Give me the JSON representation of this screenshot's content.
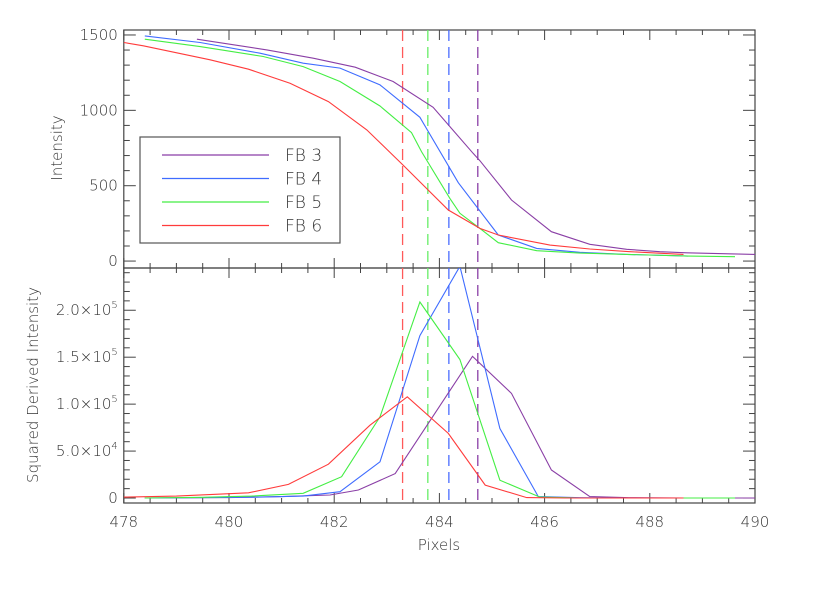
{
  "chart_data": [
    {
      "type": "line",
      "panel": "top",
      "title": "",
      "xlabel": "",
      "ylabel": "Intensity",
      "xlim": [
        478,
        490
      ],
      "ylim": [
        -46,
        1533
      ],
      "yticks": [
        0,
        500,
        1000,
        1500
      ],
      "ytick_labels": [
        "0",
        "500",
        "1000",
        "1500"
      ],
      "grid": false,
      "legend": {
        "placement": "center-left",
        "entries": [
          "FB 3",
          "FB 4",
          "FB 5",
          "FB 6"
        ]
      },
      "series": [
        {
          "name": "FB 3",
          "color": "#8a3fa6",
          "x": [
            479.39,
            480.72,
            481.6,
            482.4,
            483.12,
            483.88,
            484.64,
            484.77,
            485.37,
            486.13,
            486.86,
            487.56,
            488.19,
            488.7,
            490.0
          ],
          "y": [
            1472,
            1401,
            1346,
            1286,
            1191,
            1020,
            715,
            666,
            405,
            195,
            111,
            78,
            62,
            55,
            44
          ]
        },
        {
          "name": "FB 4",
          "color": "#3f6cff",
          "x": [
            478.4,
            479.45,
            480.59,
            481.41,
            482.11,
            482.87,
            483.63,
            484.36,
            485.12,
            485.85,
            486.67,
            487.56,
            488.73
          ],
          "y": [
            1494,
            1450,
            1379,
            1313,
            1280,
            1169,
            954,
            520,
            173,
            84,
            58,
            44,
            33
          ]
        },
        {
          "name": "FB 5",
          "color": "#44ee44",
          "x": [
            478.4,
            479.45,
            480.65,
            481.41,
            482.11,
            482.87,
            483.47,
            483.66,
            484.2,
            484.39,
            484.77,
            485.12,
            485.85,
            486.67,
            488.73,
            489.62
          ],
          "y": [
            1472,
            1423,
            1357,
            1290,
            1191,
            1029,
            852,
            726,
            416,
            317,
            217,
            122,
            69,
            53,
            33,
            29
          ]
        },
        {
          "name": "FB 6",
          "color": "#ff3b3b",
          "x": [
            478.0,
            478.37,
            479.64,
            480.37,
            481.16,
            481.89,
            482.62,
            483.31,
            484.17,
            484.77,
            485.12,
            486.1,
            486.86,
            487.62,
            488.64
          ],
          "y": [
            1450,
            1428,
            1335,
            1273,
            1180,
            1058,
            870,
            637,
            339,
            217,
            173,
            106,
            80,
            62,
            44
          ]
        }
      ],
      "vlines": [
        {
          "x": 483.3,
          "color": "#ff5a5a"
        },
        {
          "x": 483.78,
          "color": "#66ee66"
        },
        {
          "x": 484.18,
          "color": "#4a6cff"
        },
        {
          "x": 484.73,
          "color": "#8a3fa6"
        }
      ]
    },
    {
      "type": "line",
      "panel": "bottom",
      "title": "",
      "xlabel": "Pixels",
      "ylabel": "Squared Derived Intensity",
      "xlim": [
        478,
        490
      ],
      "ylim": [
        -5300,
        245000
      ],
      "xticks": [
        478,
        480,
        482,
        484,
        486,
        488,
        490
      ],
      "xtick_labels": [
        "478",
        "480",
        "482",
        "484",
        "486",
        "488",
        "490"
      ],
      "yticks": [
        0,
        50000,
        100000,
        150000,
        200000
      ],
      "ytick_labels": [
        {
          "mant": "0",
          "exp": ""
        },
        {
          "mant": "5.0×10",
          "exp": "4"
        },
        {
          "mant": "1.0×10",
          "exp": "5"
        },
        {
          "mant": "1.5×10",
          "exp": "5"
        },
        {
          "mant": "2.0×10",
          "exp": "5"
        }
      ],
      "grid": false,
      "series": [
        {
          "name": "FB 3",
          "color": "#8a3fa6",
          "x": [
            478.4,
            480.0,
            481.0,
            481.92,
            482.46,
            483.16,
            484.63,
            485.37,
            486.13,
            486.86,
            487.6,
            488.7,
            490.0
          ],
          "y": [
            0,
            500,
            1500,
            3200,
            8500,
            26000,
            151000,
            111400,
            29800,
            1500,
            300,
            0,
            0
          ]
        },
        {
          "name": "FB 4",
          "color": "#3f6cff",
          "x": [
            478.4,
            479.5,
            480.6,
            481.41,
            482.11,
            482.87,
            483.63,
            484.39,
            485.15,
            485.88,
            486.67,
            487.56,
            488.73
          ],
          "y": [
            0,
            500,
            1000,
            2000,
            6700,
            38600,
            173000,
            246800,
            74000,
            1500,
            300,
            0,
            0
          ]
        },
        {
          "name": "FB 5",
          "color": "#44ee44",
          "x": [
            478.4,
            479.5,
            480.43,
            481.41,
            482.14,
            482.87,
            483.63,
            484.39,
            485.15,
            485.91,
            486.67,
            488.73,
            489.62
          ],
          "y": [
            0,
            800,
            2000,
            5000,
            22700,
            86500,
            208800,
            147500,
            19000,
            1000,
            0,
            0,
            0
          ]
        },
        {
          "name": "FB 6",
          "color": "#ff3b3b",
          "x": [
            478.0,
            479.0,
            480.37,
            481.13,
            481.89,
            482.68,
            483.39,
            484.17,
            484.87,
            485.66,
            486.4,
            487.6,
            488.64
          ],
          "y": [
            1000,
            2000,
            5600,
            14500,
            36000,
            77600,
            107800,
            68800,
            13800,
            500,
            0,
            0,
            0
          ]
        }
      ],
      "vlines": [
        {
          "x": 483.3,
          "color": "#ff5a5a"
        },
        {
          "x": 483.78,
          "color": "#66ee66"
        },
        {
          "x": 484.18,
          "color": "#4a6cff"
        },
        {
          "x": 484.73,
          "color": "#8a3fa6"
        }
      ]
    }
  ]
}
